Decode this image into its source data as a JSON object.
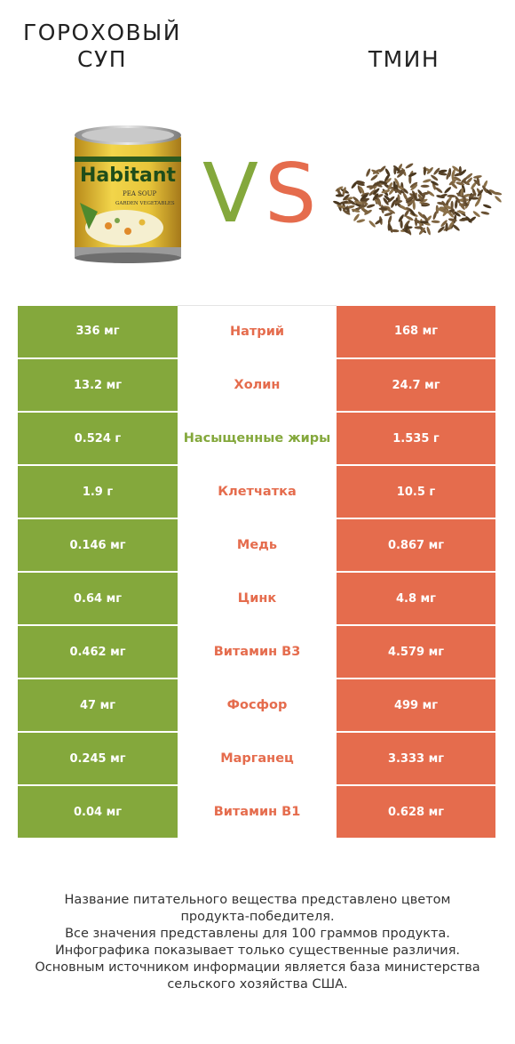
{
  "header": {
    "left_title_line1": "ГОРОХОВЫЙ",
    "left_title_line2": "СУП",
    "right_title": "ТМИН",
    "vs_v": "V",
    "vs_s": "S"
  },
  "can_label": {
    "brand": "Habitant",
    "line1": "PEA SOUP",
    "line2": "GARDEN VEGETABLES"
  },
  "colors": {
    "left_winner": "#84a83c",
    "right_winner": "#e56c4d"
  },
  "rows": [
    {
      "left": "336 мг",
      "name": "Натрий",
      "right": "168 мг",
      "winner": "right"
    },
    {
      "left": "13.2 мг",
      "name": "Холин",
      "right": "24.7 мг",
      "winner": "right"
    },
    {
      "left": "0.524 г",
      "name": "Насыщенные жиры",
      "right": "1.535 г",
      "winner": "left"
    },
    {
      "left": "1.9 г",
      "name": "Клетчатка",
      "right": "10.5 г",
      "winner": "right"
    },
    {
      "left": "0.146 мг",
      "name": "Медь",
      "right": "0.867 мг",
      "winner": "right"
    },
    {
      "left": "0.64 мг",
      "name": "Цинк",
      "right": "4.8 мг",
      "winner": "right"
    },
    {
      "left": "0.462 мг",
      "name": "Витамин B3",
      "right": "4.579 мг",
      "winner": "right"
    },
    {
      "left": "47 мг",
      "name": "Фосфор",
      "right": "499 мг",
      "winner": "right"
    },
    {
      "left": "0.245 мг",
      "name": "Марганец",
      "right": "3.333 мг",
      "winner": "right"
    },
    {
      "left": "0.04 мг",
      "name": "Витамин B1",
      "right": "0.628 мг",
      "winner": "right"
    }
  ],
  "footer": [
    "Название питательного вещества представлено цветом",
    "продукта-победителя.",
    "Все значения представлены для 100 граммов продукта.",
    "Инфографика показывает только существенные различия.",
    "Основным источником информации является база министерства",
    "сельского хозяйства США."
  ]
}
